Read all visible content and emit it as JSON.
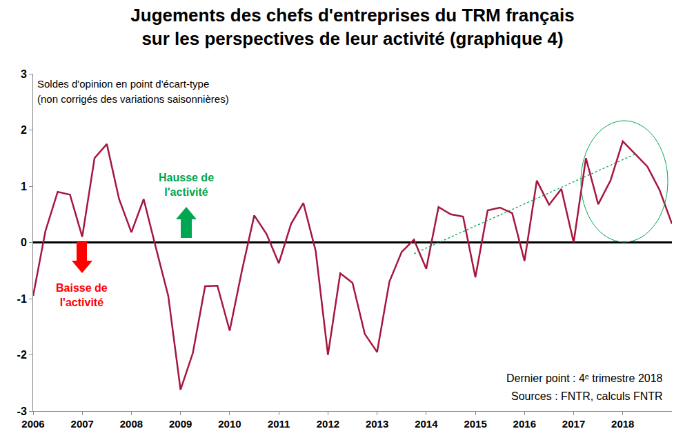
{
  "chart_data": {
    "type": "line",
    "title": "Jugements des chefs d'entreprises du TRM français\nsur les perspectives de leur activité (graphique 4)",
    "categories": [
      "2006",
      null,
      null,
      null,
      "2007",
      null,
      null,
      null,
      "2008",
      null,
      null,
      null,
      "2009",
      null,
      null,
      null,
      "2010",
      null,
      null,
      null,
      "2011",
      null,
      null,
      null,
      "2012",
      null,
      null,
      null,
      "2013",
      null,
      null,
      null,
      "2014",
      null,
      null,
      null,
      "2015",
      null,
      null,
      null,
      "2016",
      null,
      null,
      null,
      "2017",
      null,
      null,
      null,
      "2018",
      null,
      null,
      null,
      null
    ],
    "series": [
      {
        "color": "#a6163f",
        "line_style": "solid",
        "values": [
          -0.95,
          0.2,
          0.9,
          0.85,
          0.1,
          1.5,
          1.75,
          0.77,
          0.18,
          0.77,
          -0.1,
          -0.95,
          -2.62,
          -1.97,
          -0.78,
          -0.77,
          -1.57,
          -0.5,
          0.48,
          0.15,
          -0.37,
          0.33,
          0.7,
          -0.15,
          -2.0,
          -0.55,
          -0.72,
          -1.63,
          -1.95,
          -0.7,
          -0.17,
          0.05,
          -0.47,
          0.63,
          0.5,
          0.46,
          -0.62,
          0.57,
          0.62,
          0.52,
          -0.33,
          1.1,
          0.67,
          0.95,
          0.0,
          1.5,
          0.68,
          1.1,
          1.8,
          1.57,
          1.35,
          0.93,
          0.33
        ]
      },
      {
        "color": "#00a650",
        "line_style": "dot",
        "values": [
          null,
          null,
          null,
          null,
          null,
          null,
          null,
          null,
          null,
          null,
          null,
          null,
          null,
          null,
          null,
          null,
          null,
          null,
          null,
          null,
          null,
          null,
          null,
          null,
          null,
          null,
          null,
          null,
          null,
          null,
          null,
          -0.2,
          null,
          null,
          null,
          null,
          null,
          null,
          null,
          null,
          null,
          null,
          null,
          null,
          null,
          null,
          null,
          null,
          null,
          1.57,
          null,
          null,
          null
        ]
      }
    ],
    "ylim": [
      -3,
      3
    ],
    "yticks": [
      -3,
      -2,
      -1,
      0,
      1,
      2,
      3
    ],
    "grid": false,
    "annotations": [
      {
        "text": "Soldes d'opinion en point d'écart-type"
      },
      {
        "text": "(non corrigés des variations saisonnières)"
      },
      {
        "text": "Hausse de\nl'activité",
        "color": "#00a650"
      },
      {
        "text": "Baisse de\nl'activité",
        "color": "#ff0000"
      },
      {
        "text": "Dernier point : 4ᵉ trimestre 2018"
      },
      {
        "text": "Sources : FNTR, calculs FNTR"
      }
    ]
  }
}
